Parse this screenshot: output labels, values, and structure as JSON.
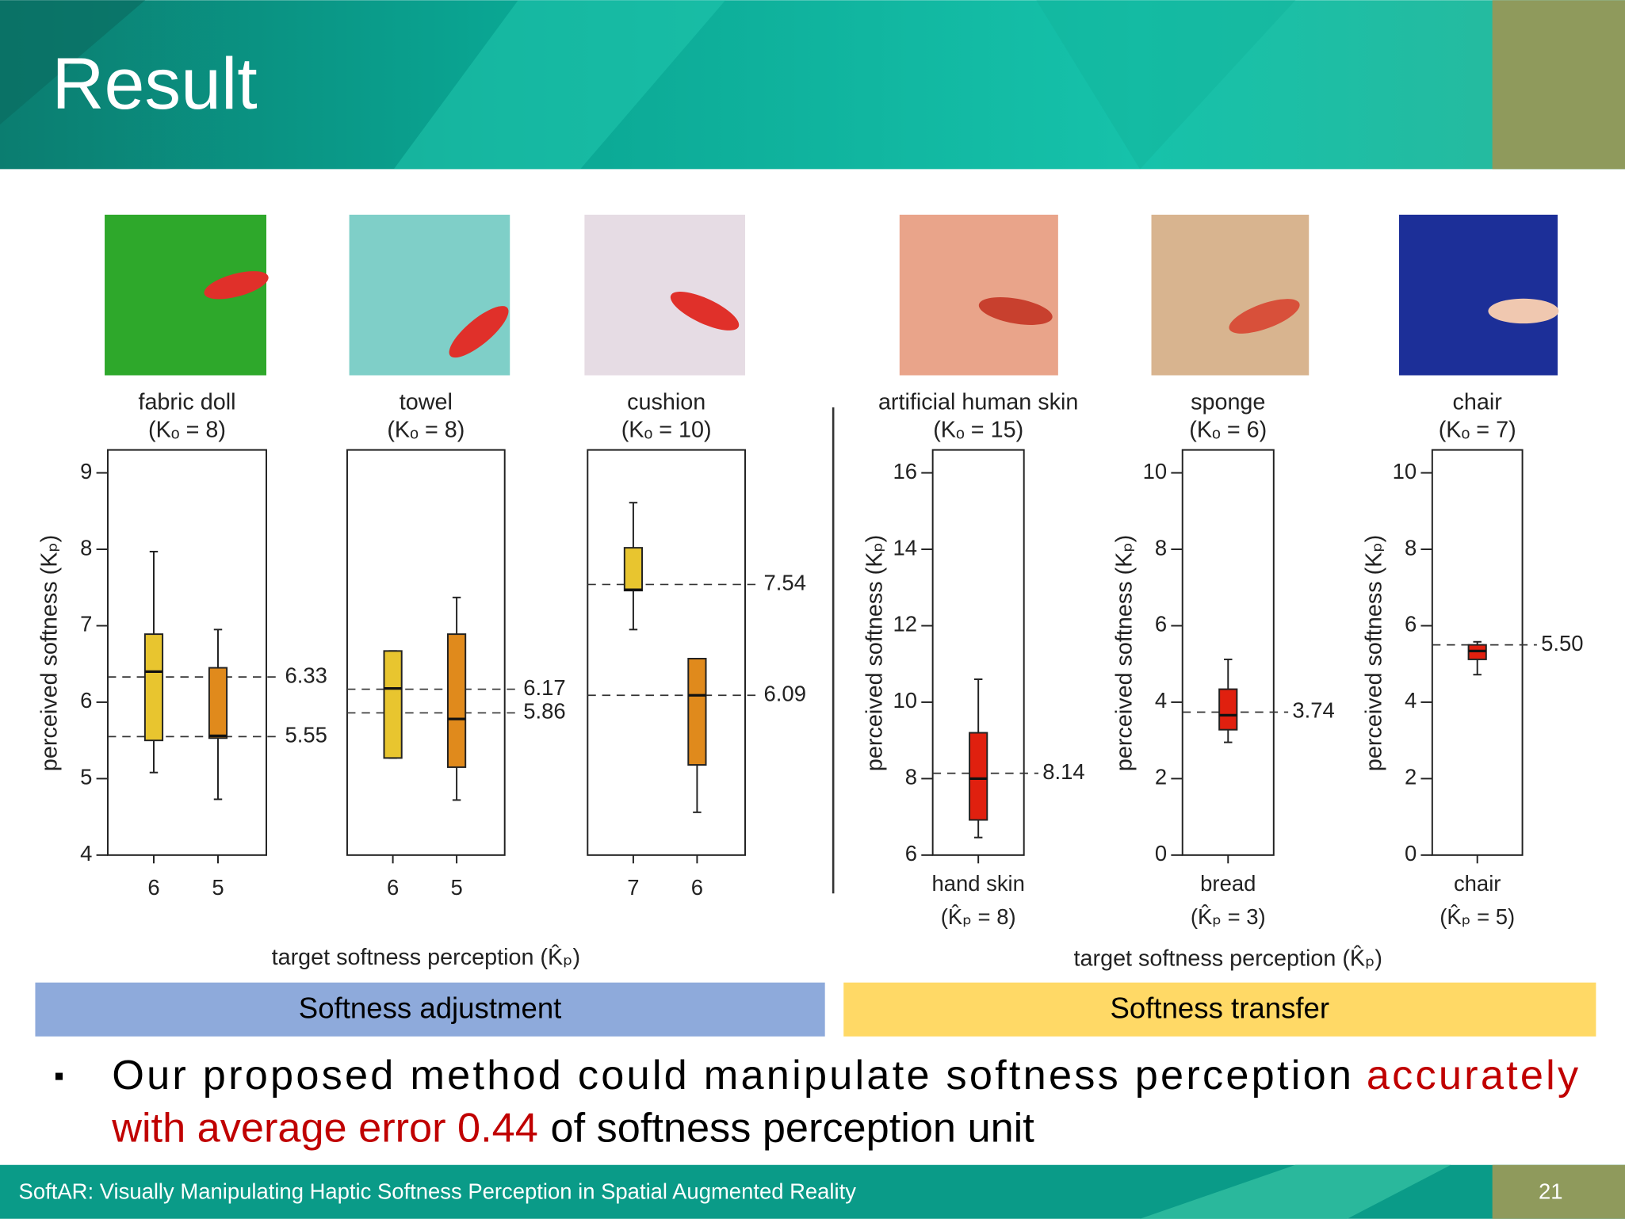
{
  "header": {
    "title": "Result"
  },
  "footer": {
    "text": "SoftAR: Visually Manipulating Haptic Softness Perception in Spatial Augmented Reality",
    "page": "21"
  },
  "groups": [
    {
      "label": "Softness adjustment",
      "xlabel": "target softness perception (K̂ₚ)",
      "color": "#8eaadb"
    },
    {
      "label": "Softness transfer",
      "xlabel": "target softness perception (K̂ₚ)",
      "color": "#ffd966"
    }
  ],
  "chart_data": [
    {
      "type": "box",
      "title": "fabric doll",
      "subtitle": "(Kₒ = 8)",
      "categories": [
        "6",
        "5"
      ],
      "min": [
        5.08,
        4.73
      ],
      "q1": [
        5.5,
        5.53
      ],
      "median": [
        6.4,
        5.56
      ],
      "q3": [
        6.89,
        6.45
      ],
      "max": [
        7.97,
        6.95
      ],
      "colors": [
        "#e8c52f",
        "#e08a1c"
      ],
      "ref_lines": [
        6.33,
        5.55
      ],
      "ref_labels": [
        "6.33",
        "5.55"
      ],
      "ylim": [
        4,
        9.3
      ],
      "yticks": [
        4,
        5,
        6,
        7,
        8,
        9
      ],
      "ylabel": "perceived softness (Kₚ)"
    },
    {
      "type": "box",
      "title": "towel",
      "subtitle": "(Kₒ = 8)",
      "categories": [
        "6",
        "5"
      ],
      "min": [
        5.27,
        4.72
      ],
      "q1": [
        5.27,
        5.15
      ],
      "median": [
        6.18,
        5.78
      ],
      "q3": [
        6.67,
        6.89
      ],
      "max": [
        6.67,
        7.37
      ],
      "colors": [
        "#e8c52f",
        "#e08a1c"
      ],
      "ref_lines": [
        6.17,
        5.86
      ],
      "ref_labels": [
        "6.17",
        "5.86"
      ],
      "ylim": [
        4,
        9.3
      ]
    },
    {
      "type": "box",
      "title": "cushion",
      "subtitle": "(Kₒ = 10)",
      "categories": [
        "7",
        "6"
      ],
      "min": [
        6.95,
        4.56
      ],
      "q1": [
        7.46,
        5.18
      ],
      "median": [
        7.47,
        6.09
      ],
      "q3": [
        8.02,
        6.57
      ],
      "max": [
        8.61,
        6.57
      ],
      "colors": [
        "#e8c52f",
        "#e08a1c"
      ],
      "ref_lines": [
        7.54,
        6.09
      ],
      "ref_labels": [
        "7.54",
        "6.09"
      ],
      "ylim": [
        4,
        9.3
      ]
    },
    {
      "type": "box",
      "title": "artificial human skin",
      "subtitle": "(Kₒ = 15)",
      "categories": [
        "hand skin"
      ],
      "category_sublabels": [
        "(K̂ₚ = 8)"
      ],
      "min": [
        6.46
      ],
      "q1": [
        6.92
      ],
      "median": [
        8.0
      ],
      "q3": [
        9.2
      ],
      "max": [
        10.6
      ],
      "colors": [
        "#e0200f"
      ],
      "ref_lines": [
        8.14
      ],
      "ref_labels": [
        "8.14"
      ],
      "ylim": [
        6,
        16.6
      ],
      "yticks": [
        6,
        8,
        10,
        12,
        14,
        16
      ],
      "ylabel": "perceived softness (Kₚ)"
    },
    {
      "type": "box",
      "title": "sponge",
      "subtitle": "(Kₒ = 6)",
      "categories": [
        "bread"
      ],
      "category_sublabels": [
        "(K̂ₚ = 3)"
      ],
      "min": [
        2.95
      ],
      "q1": [
        3.28
      ],
      "median": [
        3.66
      ],
      "q3": [
        4.34
      ],
      "max": [
        5.12
      ],
      "colors": [
        "#e0200f"
      ],
      "ref_lines": [
        3.74
      ],
      "ref_labels": [
        "3.74"
      ],
      "ylim": [
        0,
        10.6
      ],
      "yticks": [
        0,
        2,
        4,
        6,
        8,
        10
      ],
      "ylabel": "perceived softness (Kₚ)"
    },
    {
      "type": "box",
      "title": "chair",
      "subtitle": "(Kₒ = 7)",
      "categories": [
        "chair"
      ],
      "category_sublabels": [
        "(K̂ₚ = 5)"
      ],
      "min": [
        4.72
      ],
      "q1": [
        5.12
      ],
      "median": [
        5.34
      ],
      "q3": [
        5.5
      ],
      "max": [
        5.58
      ],
      "colors": [
        "#e0200f"
      ],
      "ref_lines": [
        5.5
      ],
      "ref_labels": [
        "5.50"
      ],
      "ylim": [
        0,
        10.6
      ],
      "yticks": [
        0,
        2,
        4,
        6,
        8,
        10
      ],
      "ylabel": "perceived softness (Kₚ)"
    }
  ],
  "bullet": {
    "highlight_color": "#c00000",
    "lines": [
      [
        {
          "text": "Our proposed method could manipulate softness perception",
          "highlight": false
        },
        {
          "text": "accurately",
          "highlight": true
        }
      ],
      [
        {
          "text": "with average error 0.44",
          "highlight": true
        },
        {
          "text": "of softness perception unit",
          "highlight": false
        }
      ]
    ]
  }
}
